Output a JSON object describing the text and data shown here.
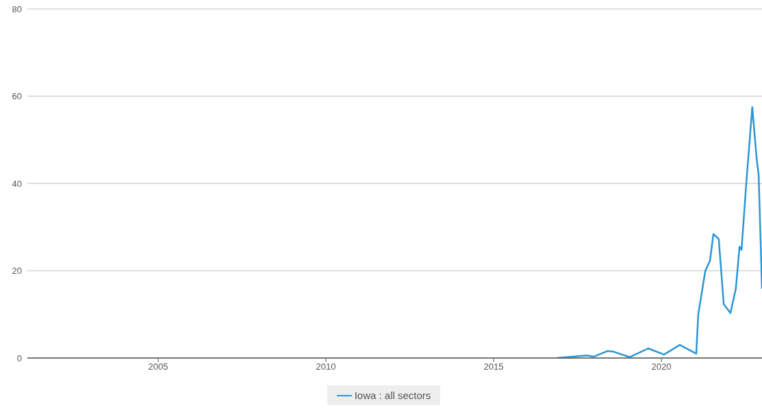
{
  "chart_data": {
    "type": "line",
    "x": [
      2016.88,
      2017.78,
      2017.98,
      2018.39,
      2018.55,
      2019.06,
      2019.61,
      2020.08,
      2020.55,
      2021.04,
      2021.1,
      2021.31,
      2021.45,
      2021.55,
      2021.71,
      2021.86,
      2022.06,
      2022.22,
      2022.33,
      2022.39,
      2022.53,
      2022.71,
      2022.84,
      2022.9,
      2023.0
    ],
    "series": [
      {
        "name": "Iowa : all sectors",
        "color": "#2b95d6",
        "values": [
          0,
          0.6,
          0.3,
          1.6,
          1.5,
          0.2,
          2.2,
          0.8,
          3.0,
          1.0,
          10,
          20,
          22.3,
          28.4,
          27.3,
          12.3,
          10.3,
          15.9,
          25.5,
          24.8,
          39.9,
          57.5,
          45.7,
          42,
          15.9
        ]
      }
    ],
    "xlim": [
      2001.1,
      2023.0
    ],
    "xticks": [
      2005,
      2010,
      2015,
      2020
    ],
    "ylim": [
      0,
      80
    ],
    "yticks": [
      0,
      20,
      40,
      60,
      80
    ],
    "grid": "y",
    "legend": "bottom"
  }
}
